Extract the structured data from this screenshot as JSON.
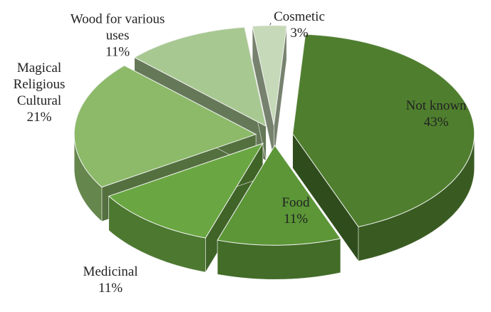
{
  "chart_data": {
    "type": "pie3d",
    "categories": [
      "Not known",
      "Food",
      "Medicinal",
      "Magical Religious Cultural",
      "Wood for various uses",
      "Cosmetic"
    ],
    "values": [
      43,
      11,
      11,
      21,
      11,
      3
    ],
    "value_labels": [
      "43%",
      "11%",
      "11%",
      "21%",
      "11%",
      "3%"
    ],
    "colors": [
      "#4f7f2e",
      "#5c9637",
      "#6aa742",
      "#8cba69",
      "#a8c892",
      "#c6d9b8"
    ]
  }
}
